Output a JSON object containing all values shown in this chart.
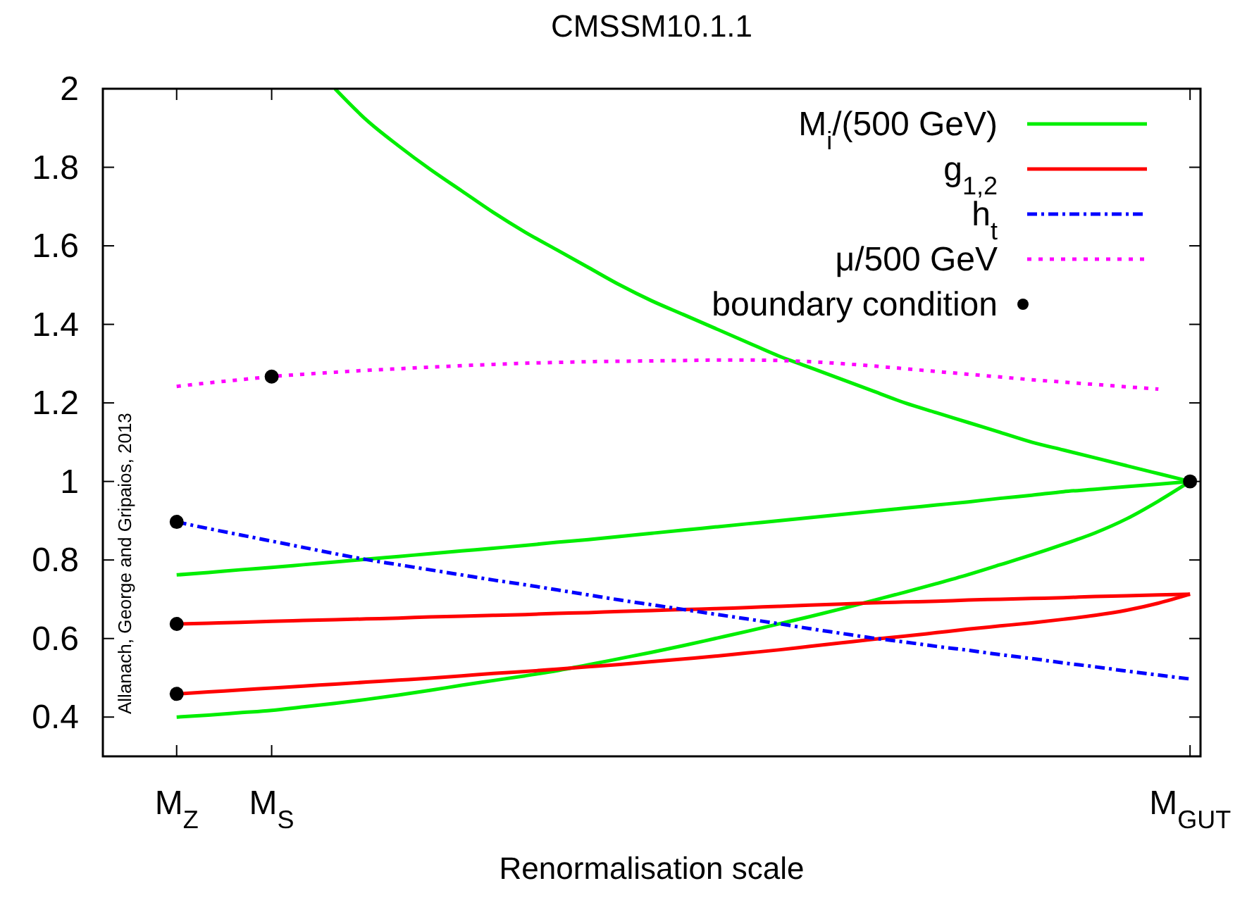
{
  "chart_data": {
    "type": "line",
    "title": "CMSSM10.1.1",
    "xlabel": "Renormalisation scale",
    "annotations": [
      "Allanach, George and Gripaios, 2013"
    ],
    "categories": [
      null,
      null,
      "M$_{Z}$",
      null,
      null,
      "M$_{S}$",
      null,
      null,
      null,
      null,
      null,
      null,
      null,
      null,
      null,
      null,
      null,
      null,
      null,
      null,
      null,
      null,
      null,
      null,
      null,
      null,
      null,
      null,
      null,
      null,
      null,
      null,
      null,
      null,
      "M$_{GUT}$"
    ],
    "ylim": [
      0.3,
      2
    ],
    "yticks": [
      0.4,
      0.6,
      0.8,
      1,
      1.2,
      1.4,
      1.6,
      1.8,
      2
    ],
    "legend": "top right",
    "marker": "none",
    "series": [
      {
        "name": "M$_{i}$/(500 GeV)",
        "color": "#00ee00",
        "line_style": "solid",
        "values": [
          null,
          null,
          null,
          null,
          null,
          null,
          null,
          2.0,
          1.92,
          1.855,
          1.795,
          1.74,
          1.685,
          1.635,
          1.59,
          1.545,
          1.5,
          1.46,
          1.425,
          1.39,
          1.355,
          1.32,
          1.29,
          1.26,
          1.23,
          1.2,
          1.175,
          1.15,
          1.125,
          1.1,
          1.08,
          1.06,
          1.04,
          1.02,
          1.0
        ]
      },
      {
        "color": "#00ee00",
        "line_style": "solid",
        "values": [
          null,
          null,
          0.762,
          0.768,
          0.775,
          0.781,
          0.788,
          0.795,
          0.802,
          0.809,
          0.816,
          0.823,
          0.83,
          0.837,
          0.845,
          0.852,
          0.86,
          0.868,
          0.876,
          0.884,
          0.892,
          0.9,
          0.908,
          0.916,
          0.924,
          0.932,
          0.94,
          0.948,
          0.957,
          0.965,
          0.974,
          0.98,
          0.987,
          0.993,
          1.0
        ]
      },
      {
        "color": "#00ee00",
        "line_style": "solid",
        "values": [
          null,
          null,
          0.4,
          0.405,
          0.411,
          0.417,
          0.426,
          0.435,
          0.445,
          0.456,
          0.468,
          0.481,
          0.493,
          0.505,
          0.518,
          0.533,
          0.549,
          0.565,
          0.582,
          0.6,
          0.618,
          0.637,
          0.656,
          0.676,
          0.697,
          0.718,
          0.74,
          0.763,
          0.788,
          0.813,
          0.84,
          0.869,
          0.905,
          0.95,
          1.0
        ]
      },
      {
        "name": "g$_{1,2}$",
        "color": "#ff0000",
        "line_style": "solid",
        "values": [
          null,
          null,
          0.637,
          0.639,
          0.641,
          0.644,
          0.646,
          0.648,
          0.65,
          0.652,
          0.655,
          0.657,
          0.659,
          0.661,
          0.664,
          0.666,
          0.669,
          0.671,
          0.674,
          0.676,
          0.679,
          0.682,
          0.685,
          0.688,
          0.691,
          0.693,
          0.695,
          0.698,
          0.7,
          0.702,
          0.704,
          0.707,
          0.709,
          0.711,
          0.713
        ]
      },
      {
        "color": "#ff0000",
        "line_style": "solid",
        "values": [
          null,
          null,
          0.459,
          0.464,
          0.469,
          0.474,
          0.479,
          0.484,
          0.489,
          0.494,
          0.499,
          0.505,
          0.511,
          0.516,
          0.522,
          0.528,
          0.534,
          0.541,
          0.548,
          0.555,
          0.563,
          0.571,
          0.58,
          0.589,
          0.598,
          0.606,
          0.615,
          0.624,
          0.632,
          0.64,
          0.649,
          0.659,
          0.672,
          0.69,
          0.713
        ]
      },
      {
        "name": "h$_{t}$",
        "color": "#0000ff",
        "line_style": "dashed",
        "values": [
          null,
          null,
          0.897,
          0.88,
          0.864,
          0.848,
          0.832,
          0.816,
          0.801,
          0.788,
          0.775,
          0.762,
          0.749,
          0.737,
          0.724,
          0.711,
          0.698,
          0.686,
          0.674,
          0.662,
          0.65,
          0.638,
          0.625,
          0.613,
          0.601,
          0.591,
          0.58,
          0.57,
          0.559,
          0.549,
          0.538,
          0.528,
          0.517,
          0.507,
          0.497
        ]
      },
      {
        "name": "μ/500 GeV",
        "color": "#ff00ff",
        "line_style": "dotted",
        "values": [
          null,
          null,
          1.242,
          1.251,
          1.259,
          1.267,
          1.273,
          1.278,
          1.283,
          1.287,
          1.291,
          1.295,
          1.298,
          1.301,
          1.303,
          1.305,
          1.306,
          1.307,
          1.308,
          1.309,
          1.309,
          1.308,
          1.305,
          1.3,
          1.294,
          1.287,
          1.28,
          1.273,
          1.266,
          1.259,
          1.253,
          1.247,
          1.241,
          1.235,
          null
        ]
      },
      {
        "name": "boundary condition",
        "type": "scatter",
        "marker": "circle",
        "color": "#000000",
        "x": [
          "M$_{Z}$",
          "M$_{Z}$",
          "M$_{Z}$",
          "M$_{S}$",
          "M$_{GUT}$"
        ],
        "values": [
          0.897,
          0.637,
          0.459,
          1.267,
          1.0
        ]
      }
    ]
  }
}
